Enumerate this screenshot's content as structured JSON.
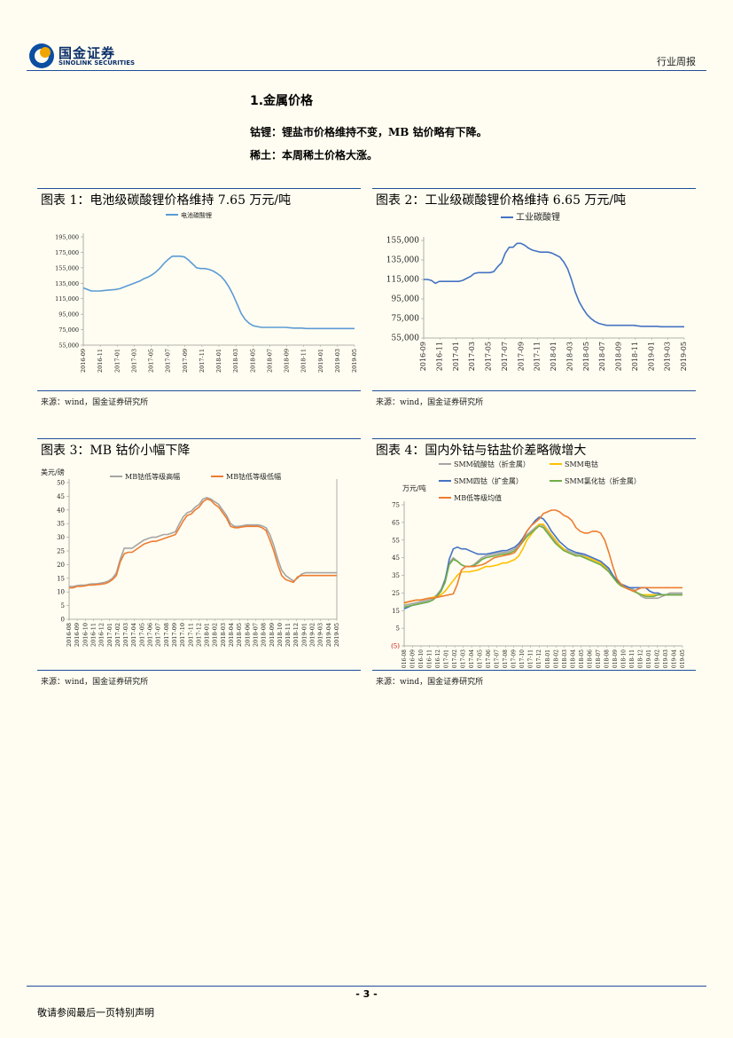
{
  "header": {
    "logo_cn": "国金证券",
    "logo_en": "SINOLINK SECURITIES",
    "report_type": "行业周报"
  },
  "section": {
    "title": "1.金属价格",
    "lines": [
      "钴锂：锂盐市价格维持不变，MB 钴价略有下降。",
      "稀土：本周稀土价格大涨。"
    ]
  },
  "figures": [
    {
      "title": "图表 1：电池级碳酸锂价格维持 7.65 万元/吨",
      "source": "来源：wind，国金证券研究所"
    },
    {
      "title": "图表 2：工业级碳酸锂价格维持 6.65 万元/吨",
      "source": "来源：wind，国金证券研究所"
    },
    {
      "title": "图表 3：MB 钴价小幅下降",
      "source": "来源：wind，国金证券研究所"
    },
    {
      "title": "图表 4：国内外钴与钴盐价差略微增大",
      "source": "来源：wind，国金证券研究所"
    }
  ],
  "footer": {
    "page_number": "- 3 -",
    "disclaimer": "敬请参阅最后一页特别声明"
  },
  "chart_data": [
    {
      "type": "line",
      "legend": [
        "电池碳酸锂"
      ],
      "colors": [
        "#5b9bd5"
      ],
      "ylim": [
        55000,
        195000
      ],
      "ytick_values": [
        55000,
        75000,
        95000,
        115000,
        135000,
        155000,
        175000,
        195000
      ],
      "ytick_labels": [
        "55,000",
        "75,000",
        "95,000",
        "115,000",
        "135,000",
        "155,000",
        "175,000",
        "195,000"
      ],
      "xtick_labels": [
        "2016-09",
        "2016-11",
        "2017-01",
        "2017-03",
        "2017-05",
        "2017-07",
        "2017-09",
        "2017-11",
        "2018-01",
        "2018-03",
        "2018-05",
        "2018-07",
        "2018-09",
        "2018-11",
        "2019-01",
        "2019-03",
        "2019-05"
      ],
      "x": [
        0,
        1,
        2,
        3,
        4,
        5,
        6,
        7,
        8,
        9,
        10,
        11,
        12,
        13,
        14,
        15,
        16,
        17,
        18,
        19,
        20,
        21,
        22,
        23,
        24,
        25,
        26,
        27,
        28,
        29,
        30,
        31,
        32,
        33,
        34,
        35,
        36,
        37,
        38,
        39,
        40,
        41,
        42,
        43,
        44,
        45,
        46,
        47,
        48,
        49,
        50,
        51,
        52,
        53,
        54,
        55,
        56,
        57,
        58,
        59,
        60,
        61,
        62,
        63,
        64,
        65,
        66,
        67
      ],
      "series": [
        {
          "name": "电池碳酸锂",
          "values": [
            129000,
            127000,
            125000,
            125000,
            125000,
            125500,
            126000,
            126500,
            127000,
            128000,
            130000,
            132000,
            134000,
            136000,
            138000,
            141000,
            143000,
            146000,
            150000,
            155000,
            161000,
            166000,
            170000,
            170000,
            170000,
            169000,
            165000,
            160000,
            155000,
            154000,
            154000,
            153000,
            151000,
            148000,
            144000,
            138000,
            130000,
            120000,
            108000,
            96000,
            88000,
            83000,
            80000,
            79000,
            78000,
            78000,
            78000,
            78000,
            78000,
            78000,
            78000,
            77500,
            77000,
            77000,
            77000,
            76500,
            76500,
            76500,
            76500,
            76500,
            76500,
            76500,
            76500,
            76500,
            76500,
            76500,
            76500,
            76500
          ]
        }
      ]
    },
    {
      "type": "line",
      "legend": [
        "工业碳酸锂"
      ],
      "colors": [
        "#4472c4"
      ],
      "ylim": [
        55000,
        155000
      ],
      "ytick_values": [
        55000,
        75000,
        95000,
        115000,
        135000,
        155000
      ],
      "ytick_labels": [
        "55,000",
        "75,000",
        "95,000",
        "115,000",
        "135,000",
        "155,000"
      ],
      "xtick_labels": [
        "2016-09",
        "2016-11",
        "2017-01",
        "2017-03",
        "2017-05",
        "2017-07",
        "2017-09",
        "2017-11",
        "2018-01",
        "2018-03",
        "2018-05",
        "2018-07",
        "2018-09",
        "2018-11",
        "2019-01",
        "2019-03",
        "2019-05"
      ],
      "x": [
        0,
        1,
        2,
        3,
        4,
        5,
        6,
        7,
        8,
        9,
        10,
        11,
        12,
        13,
        14,
        15,
        16,
        17,
        18,
        19,
        20,
        21,
        22,
        23,
        24,
        25,
        26,
        27,
        28,
        29,
        30,
        31,
        32,
        33,
        34,
        35,
        36,
        37,
        38,
        39,
        40,
        41,
        42,
        43,
        44,
        45,
        46,
        47,
        48,
        49,
        50,
        51,
        52,
        53,
        54,
        55,
        56,
        57,
        58,
        59,
        60,
        61,
        62,
        63,
        64,
        65,
        66,
        67
      ],
      "series": [
        {
          "name": "工业碳酸锂",
          "values": [
            115000,
            115000,
            114000,
            111000,
            113000,
            113000,
            113000,
            113000,
            113000,
            113000,
            114000,
            116000,
            118000,
            121000,
            122000,
            122000,
            122000,
            122000,
            123000,
            128000,
            132000,
            142000,
            148000,
            148000,
            152000,
            152000,
            150000,
            147000,
            145000,
            144000,
            143000,
            143000,
            143000,
            142000,
            140000,
            138000,
            133000,
            126000,
            115000,
            102000,
            92000,
            85000,
            79000,
            75000,
            72000,
            70000,
            69000,
            68000,
            68000,
            68000,
            68000,
            68000,
            68000,
            68000,
            68000,
            67500,
            67000,
            67000,
            67000,
            67000,
            67000,
            66500,
            66500,
            66500,
            66500,
            66500,
            66500,
            66500
          ]
        }
      ]
    },
    {
      "type": "line",
      "ylabel": "美元/磅",
      "legend": [
        "MB钴低等级高幅",
        "MB钴低等级低幅"
      ],
      "colors": [
        "#a5a5a5",
        "#ed7d31"
      ],
      "ylim": [
        0,
        50
      ],
      "ytick_values": [
        0,
        5,
        10,
        15,
        20,
        25,
        30,
        35,
        40,
        45,
        50
      ],
      "ytick_labels": [
        "0",
        "5",
        "10",
        "15",
        "20",
        "25",
        "30",
        "35",
        "40",
        "45",
        "50"
      ],
      "xtick_labels": [
        "2016-08",
        "2016-09",
        "2016-10",
        "2016-11",
        "2016-12",
        "2017-01",
        "2017-02",
        "2017-03",
        "2017-04",
        "2017-05",
        "2017-06",
        "2017-07",
        "2017-08",
        "2017-09",
        "2017-10",
        "2017-11",
        "2017-12",
        "2018-01",
        "2018-02",
        "2018-03",
        "2018-04",
        "2018-05",
        "2018-06",
        "2018-07",
        "2018-08",
        "2018-09",
        "2018-10",
        "2018-11",
        "2018-12",
        "2019-01",
        "2019-02",
        "2019-03",
        "2019-04",
        "2019-05"
      ],
      "x": [
        0,
        1,
        2,
        3,
        4,
        5,
        6,
        7,
        8,
        9,
        10,
        11,
        12,
        13,
        14,
        15,
        16,
        17,
        18,
        19,
        20,
        21,
        22,
        23,
        24,
        25,
        26,
        27,
        28,
        29,
        30,
        31,
        32,
        33,
        34,
        35,
        36,
        37,
        38,
        39,
        40,
        41,
        42,
        43,
        44,
        45,
        46,
        47,
        48,
        49,
        50,
        51,
        52,
        53,
        54,
        55,
        56,
        57,
        58,
        59,
        60,
        61,
        62,
        63,
        64,
        65,
        66,
        67,
        68
      ],
      "series": [
        {
          "name": "MB钴低等级高幅",
          "values": [
            12,
            12,
            12.3,
            12.5,
            12.5,
            12.8,
            13,
            13,
            13.2,
            13.5,
            14,
            15,
            17,
            22,
            26,
            26,
            26,
            27,
            28,
            29,
            29.5,
            30,
            30,
            30.5,
            31,
            31,
            31.5,
            32,
            35,
            37.5,
            39,
            39.5,
            41,
            42,
            44,
            44.5,
            44,
            43,
            42,
            40,
            38,
            35,
            34,
            34,
            34.2,
            34.5,
            34.5,
            34.5,
            34.5,
            34.2,
            33.5,
            31,
            27,
            22,
            18,
            16,
            15,
            14,
            15,
            16.5,
            17,
            17,
            17,
            17,
            17,
            17,
            17,
            17,
            17
          ]
        },
        {
          "name": "MB钴低等级低幅",
          "values": [
            11.5,
            11.5,
            12,
            12,
            12.2,
            12.5,
            12.5,
            12.7,
            12.8,
            13,
            13.5,
            14.5,
            16,
            21,
            24,
            24.5,
            24.5,
            25.5,
            26.5,
            27.5,
            28,
            28.5,
            28.5,
            29,
            29.5,
            30,
            30.5,
            31,
            33.5,
            36,
            38,
            38.5,
            40,
            41,
            43,
            44,
            43.5,
            42,
            41,
            39,
            37,
            34,
            33.5,
            33.5,
            33.8,
            34,
            34,
            34,
            34,
            33.5,
            32.5,
            29,
            25,
            20,
            16,
            14.5,
            14,
            13.5,
            15.5,
            16,
            16,
            16,
            16,
            16,
            16,
            16,
            16,
            16,
            16
          ]
        }
      ]
    },
    {
      "type": "line",
      "ylabel": "万元/吨",
      "legend": [
        "SMM硫酸钴（折金属）",
        "SMM电钴",
        "SMM四钴（扩金属）",
        "SMM氯化钴（折金属）",
        "MB低等级均值"
      ],
      "colors": [
        "#a5a5a5",
        "#ffc000",
        "#4472c4",
        "#70ad47",
        "#ed7d31"
      ],
      "ylim": [
        -5,
        75
      ],
      "ytick_values": [
        -5,
        5,
        15,
        25,
        35,
        45,
        55,
        65,
        75
      ],
      "ytick_labels": [
        "(5)",
        "5",
        "15",
        "25",
        "35",
        "45",
        "55",
        "65",
        "75"
      ],
      "xtick_labels": [
        "2016-08",
        "2016-09",
        "2016-10",
        "2016-11",
        "2016-12",
        "2017-01",
        "2017-02",
        "2017-03",
        "2017-04",
        "2017-05",
        "2017-06",
        "2017-07",
        "2017-08",
        "2017-09",
        "2017-10",
        "2017-11",
        "2017-12",
        "2018-01",
        "2018-02",
        "2018-03",
        "2018-04",
        "2018-05",
        "2018-06",
        "2018-07",
        "2018-08",
        "2018-09",
        "2018-10",
        "2018-11",
        "2018-12",
        "2019-01",
        "2019-02",
        "2019-03",
        "2019-04",
        "2019-05"
      ],
      "x": [
        0,
        1,
        2,
        3,
        4,
        5,
        6,
        7,
        8,
        9,
        10,
        11,
        12,
        13,
        14,
        15,
        16,
        17,
        18,
        19,
        20,
        21,
        22,
        23,
        24,
        25,
        26,
        27,
        28,
        29,
        30,
        31,
        32,
        33,
        34,
        35,
        36,
        37,
        38,
        39,
        40,
        41,
        42,
        43,
        44,
        45,
        46,
        47,
        48,
        49,
        50,
        51,
        52,
        53,
        54,
        55,
        56,
        57,
        58,
        59,
        60,
        61,
        62,
        63,
        64,
        65,
        66,
        67,
        68
      ],
      "series": [
        {
          "name": "SMM硫酸钴（折金属）",
          "values": [
            18,
            18.5,
            19,
            19.5,
            20,
            20.5,
            21,
            22,
            24,
            27,
            33,
            42,
            45,
            43,
            41,
            40,
            40,
            41,
            43,
            45,
            46,
            46.5,
            47,
            47.5,
            48,
            48,
            49,
            50,
            52,
            55,
            58,
            60,
            62,
            64,
            63,
            60,
            57,
            54,
            52,
            50,
            49,
            48,
            47,
            47,
            46,
            45,
            44,
            43,
            42,
            40,
            38,
            35,
            32,
            30,
            29,
            28,
            27,
            25,
            23,
            22,
            22,
            22,
            22,
            23,
            24,
            25,
            25,
            25,
            25
          ]
        },
        {
          "name": "SMM电钴",
          "values": [
            19,
            20,
            20.5,
            21,
            21,
            21.5,
            22,
            22.5,
            23,
            24,
            26,
            29,
            32,
            35,
            37,
            37,
            37,
            37.5,
            38,
            39,
            40,
            40,
            40.5,
            41,
            42,
            42,
            43,
            44,
            46,
            50,
            55,
            58,
            61,
            64,
            64,
            61,
            58,
            55,
            52,
            50,
            48,
            47,
            46,
            46,
            45.5,
            45,
            44,
            43,
            42,
            40,
            37,
            34,
            31,
            29,
            28,
            27,
            26,
            25,
            24,
            24,
            24,
            24,
            24,
            24,
            24,
            24,
            24,
            24,
            24
          ]
        },
        {
          "name": "SMM四钴（扩金属）",
          "values": [
            16,
            17,
            18,
            18.5,
            19,
            19.5,
            20,
            21,
            23,
            26,
            32,
            44,
            50,
            51,
            50,
            50,
            49,
            48,
            47,
            47,
            47,
            47.5,
            48,
            48.5,
            49,
            49,
            50,
            51,
            53,
            56,
            60,
            63,
            66,
            68,
            67,
            64,
            60,
            57,
            54,
            52,
            50,
            49,
            48,
            47.5,
            47,
            46,
            45,
            44,
            43,
            41,
            39,
            35,
            32,
            30,
            29,
            28,
            28,
            28,
            28,
            28,
            26,
            25,
            25,
            24,
            24,
            24,
            24,
            24,
            24
          ]
        },
        {
          "name": "SMM氯化钴（折金属）",
          "values": [
            17,
            17.5,
            18,
            18.5,
            19,
            19.5,
            20,
            21,
            23,
            26,
            31,
            41,
            44,
            43,
            41,
            40,
            40,
            40.5,
            42,
            44,
            45,
            45.5,
            46,
            46.5,
            47,
            47,
            48,
            49,
            51,
            54,
            57,
            59,
            61,
            63,
            62,
            59,
            56,
            53,
            51,
            49,
            48,
            47,
            46,
            46,
            45,
            44,
            43,
            42,
            41,
            39,
            37,
            34,
            31,
            29,
            28,
            27,
            26,
            25,
            24,
            23,
            23,
            23,
            24,
            24,
            24,
            24,
            24,
            24,
            24
          ]
        },
        {
          "name": "MB低等级均值",
          "values": [
            19.5,
            20,
            20.5,
            21,
            21,
            21.5,
            22,
            22,
            22.5,
            23,
            23.5,
            24,
            24.5,
            30,
            38,
            40,
            40,
            40,
            40.5,
            41,
            42,
            43.5,
            45,
            45.5,
            46,
            46.5,
            47,
            48,
            51,
            55,
            60,
            63,
            65,
            67,
            70,
            71,
            72,
            72,
            71,
            69,
            68,
            66,
            62,
            60,
            59,
            59,
            60,
            60,
            59,
            55,
            48,
            40,
            33,
            30,
            28,
            27,
            26,
            27,
            28,
            28,
            28,
            28,
            28,
            28,
            28,
            28,
            28,
            28,
            28
          ]
        }
      ]
    }
  ]
}
